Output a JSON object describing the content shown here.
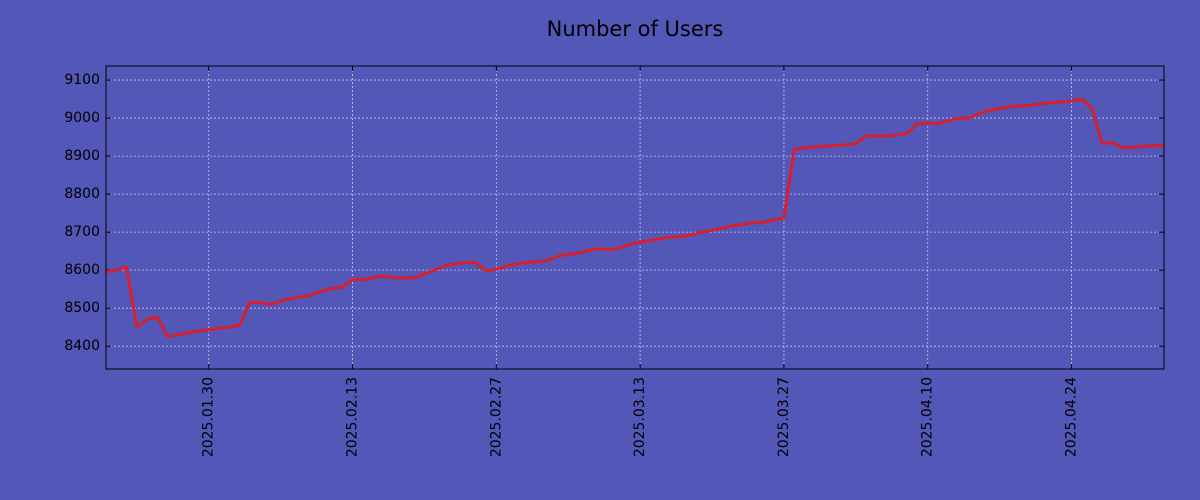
{
  "chart_data": {
    "type": "line",
    "title": "Number of Users",
    "x": [
      "2025.01.20",
      "2025.01.21",
      "2025.01.22",
      "2025.01.23",
      "2025.01.24",
      "2025.01.25",
      "2025.01.26",
      "2025.01.27",
      "2025.01.28",
      "2025.01.29",
      "2025.01.30",
      "2025.01.31",
      "2025.02.01",
      "2025.02.02",
      "2025.02.03",
      "2025.02.04",
      "2025.02.05",
      "2025.02.06",
      "2025.02.07",
      "2025.02.08",
      "2025.02.09",
      "2025.02.10",
      "2025.02.11",
      "2025.02.12",
      "2025.02.13",
      "2025.02.14",
      "2025.02.15",
      "2025.02.16",
      "2025.02.17",
      "2025.02.18",
      "2025.02.19",
      "2025.02.20",
      "2025.02.21",
      "2025.02.22",
      "2025.02.23",
      "2025.02.24",
      "2025.02.25",
      "2025.02.26",
      "2025.02.27",
      "2025.02.28",
      "2025.03.01",
      "2025.03.02",
      "2025.03.03",
      "2025.03.04",
      "2025.03.05",
      "2025.03.06",
      "2025.03.07",
      "2025.03.08",
      "2025.03.09",
      "2025.03.10",
      "2025.03.11",
      "2025.03.12",
      "2025.03.13",
      "2025.03.14",
      "2025.03.15",
      "2025.03.16",
      "2025.03.17",
      "2025.03.18",
      "2025.03.19",
      "2025.03.20",
      "2025.03.21",
      "2025.03.22",
      "2025.03.23",
      "2025.03.24",
      "2025.03.25",
      "2025.03.26",
      "2025.03.27",
      "2025.03.28",
      "2025.03.29",
      "2025.03.30",
      "2025.03.31",
      "2025.04.01",
      "2025.04.02",
      "2025.04.03",
      "2025.04.04",
      "2025.04.05",
      "2025.04.06",
      "2025.04.07",
      "2025.04.08",
      "2025.04.09",
      "2025.04.10",
      "2025.04.11",
      "2025.04.12",
      "2025.04.13",
      "2025.04.14",
      "2025.04.15",
      "2025.04.16",
      "2025.04.17",
      "2025.04.18",
      "2025.04.19",
      "2025.04.20",
      "2025.04.21",
      "2025.04.22",
      "2025.04.23",
      "2025.04.24",
      "2025.04.25",
      "2025.04.26",
      "2025.04.27",
      "2025.04.28",
      "2025.04.29",
      "2025.04.30",
      "2025.05.01",
      "2025.05.02",
      "2025.05.03"
    ],
    "values": [
      8595,
      8600,
      8608,
      8450,
      8470,
      8477,
      8425,
      8430,
      8435,
      8440,
      8443,
      8447,
      8450,
      8455,
      8515,
      8515,
      8510,
      8518,
      8525,
      8530,
      8535,
      8545,
      8552,
      8555,
      8575,
      8575,
      8580,
      8585,
      8580,
      8580,
      8580,
      8590,
      8600,
      8612,
      8617,
      8620,
      8620,
      8598,
      8603,
      8610,
      8617,
      8620,
      8622,
      8625,
      8637,
      8642,
      8645,
      8652,
      8657,
      8653,
      8658,
      8668,
      8673,
      8678,
      8683,
      8687,
      8688,
      8693,
      8700,
      8705,
      8710,
      8717,
      8720,
      8725,
      8725,
      8732,
      8737,
      8917,
      8922,
      8924,
      8926,
      8928,
      8930,
      8932,
      8953,
      8953,
      8953,
      8956,
      8960,
      8985,
      8987,
      8985,
      8993,
      9000,
      9000,
      9012,
      9020,
      9025,
      9030,
      9032,
      9033,
      9038,
      9040,
      9043,
      9045,
      9050,
      9025,
      8933,
      8935,
      8922,
      8923,
      8926,
      8928,
      8928
    ],
    "color": "#d8202c",
    "xlim": [
      "2025.01.20",
      "2025.05.03"
    ],
    "xticks": [
      "2025.01.30",
      "2025.02.13",
      "2025.02.27",
      "2025.03.13",
      "2025.03.27",
      "2025.04.10",
      "2025.04.24"
    ],
    "ylim": [
      8340,
      9137
    ],
    "yticks": [
      8400,
      8500,
      8600,
      8700,
      8800,
      8900,
      9000,
      9100
    ],
    "grid": true
  }
}
